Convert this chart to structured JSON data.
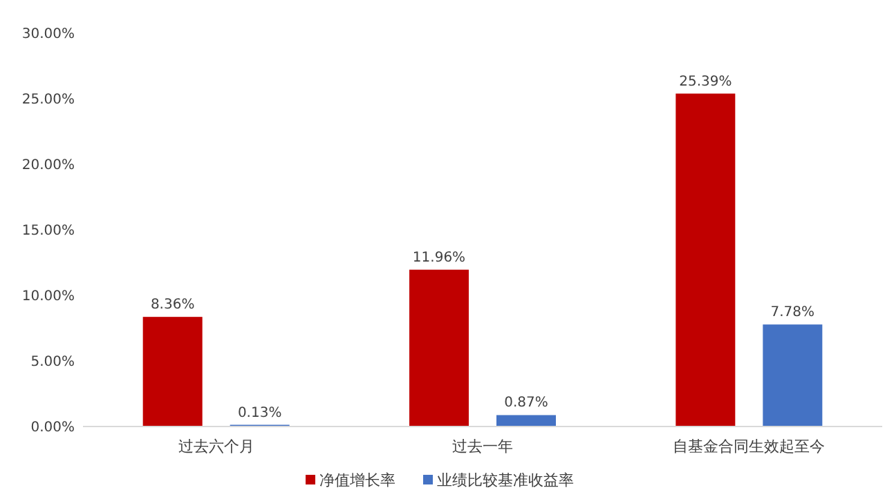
{
  "chart_data": {
    "type": "bar",
    "categories": [
      "过去六个月",
      "过去一年",
      "自基金合同生效起至今"
    ],
    "series": [
      {
        "name": "净值增长率",
        "color": "#c00000",
        "values": [
          8.36,
          11.96,
          25.39
        ],
        "value_labels": [
          "8.36%",
          "11.96%",
          "25.39%"
        ]
      },
      {
        "name": "业绩比较基准收益率",
        "color": "#4472c4",
        "values": [
          0.13,
          0.87,
          7.78
        ],
        "value_labels": [
          "0.13%",
          "0.87%",
          "7.78%"
        ]
      }
    ],
    "ylim": [
      0,
      30
    ],
    "yticks": [
      {
        "value": 0,
        "label": "0.00%"
      },
      {
        "value": 5,
        "label": "5.00%"
      },
      {
        "value": 10,
        "label": "10.00%"
      },
      {
        "value": 15,
        "label": "15.00%"
      },
      {
        "value": 20,
        "label": "20.00%"
      },
      {
        "value": 25,
        "label": "25.00%"
      },
      {
        "value": 30,
        "label": "30.00%"
      }
    ],
    "grid": false,
    "legend": "bottom"
  }
}
